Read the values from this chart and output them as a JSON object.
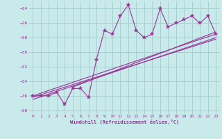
{
  "xlabel": "Windchill (Refroidissement éolien,°C)",
  "bg_color": "#c8eaea",
  "grid_color": "#a8d0d0",
  "line_color": "#993399",
  "xlim": [
    -0.5,
    23.5
  ],
  "ylim": [
    -38.5,
    -23.0
  ],
  "xticks": [
    0,
    1,
    2,
    3,
    4,
    5,
    6,
    7,
    8,
    9,
    10,
    11,
    12,
    13,
    14,
    15,
    16,
    17,
    18,
    19,
    20,
    21,
    22,
    23
  ],
  "yticks": [
    -38,
    -36,
    -34,
    -32,
    -30,
    -28,
    -26,
    -24
  ],
  "data_x": [
    0,
    1,
    2,
    3,
    4,
    5,
    6,
    7,
    8,
    9,
    10,
    11,
    12,
    13,
    14,
    15,
    16,
    17,
    18,
    19,
    20,
    21,
    22,
    23
  ],
  "data_y": [
    -36,
    -36,
    -36,
    -35.5,
    -37.2,
    -35,
    -35,
    -36.2,
    -31,
    -27,
    -27.5,
    -25,
    -23.5,
    -27,
    -28,
    -27.5,
    -24,
    -26.5,
    -26,
    -25.5,
    -25,
    -26,
    -25,
    -27.5
  ],
  "trend_lines": [
    {
      "x": [
        0,
        23
      ],
      "y": [
        -36,
        -27.5
      ]
    },
    {
      "x": [
        0,
        23
      ],
      "y": [
        -36.2,
        -28.2
      ]
    },
    {
      "x": [
        0,
        23
      ],
      "y": [
        -36.5,
        -28.0
      ]
    },
    {
      "x": [
        5,
        23
      ],
      "y": [
        -34.8,
        -27.2
      ]
    }
  ]
}
